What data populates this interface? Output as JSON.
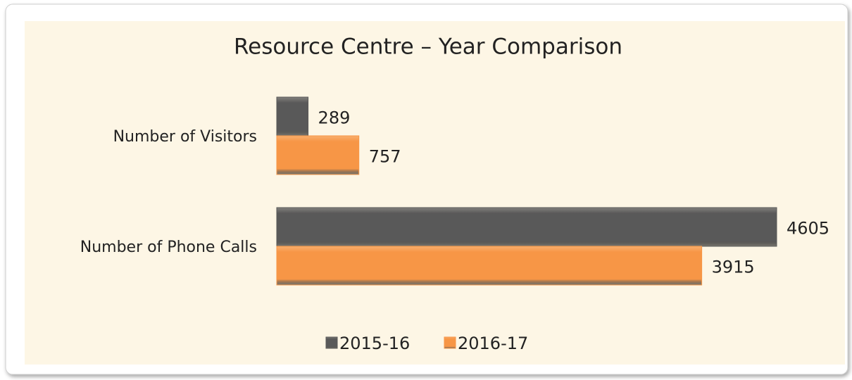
{
  "chart_data": {
    "type": "hbar",
    "title": "Resource Centre – Year Comparison",
    "categories": [
      "Number of Visitors",
      "Number of Phone Calls"
    ],
    "series": [
      {
        "name": "2015-16",
        "color": "#595959",
        "values": [
          289,
          4605
        ]
      },
      {
        "name": "2016-17",
        "color": "#f79646",
        "values": [
          757,
          3915
        ]
      }
    ],
    "legend": "bottom"
  }
}
